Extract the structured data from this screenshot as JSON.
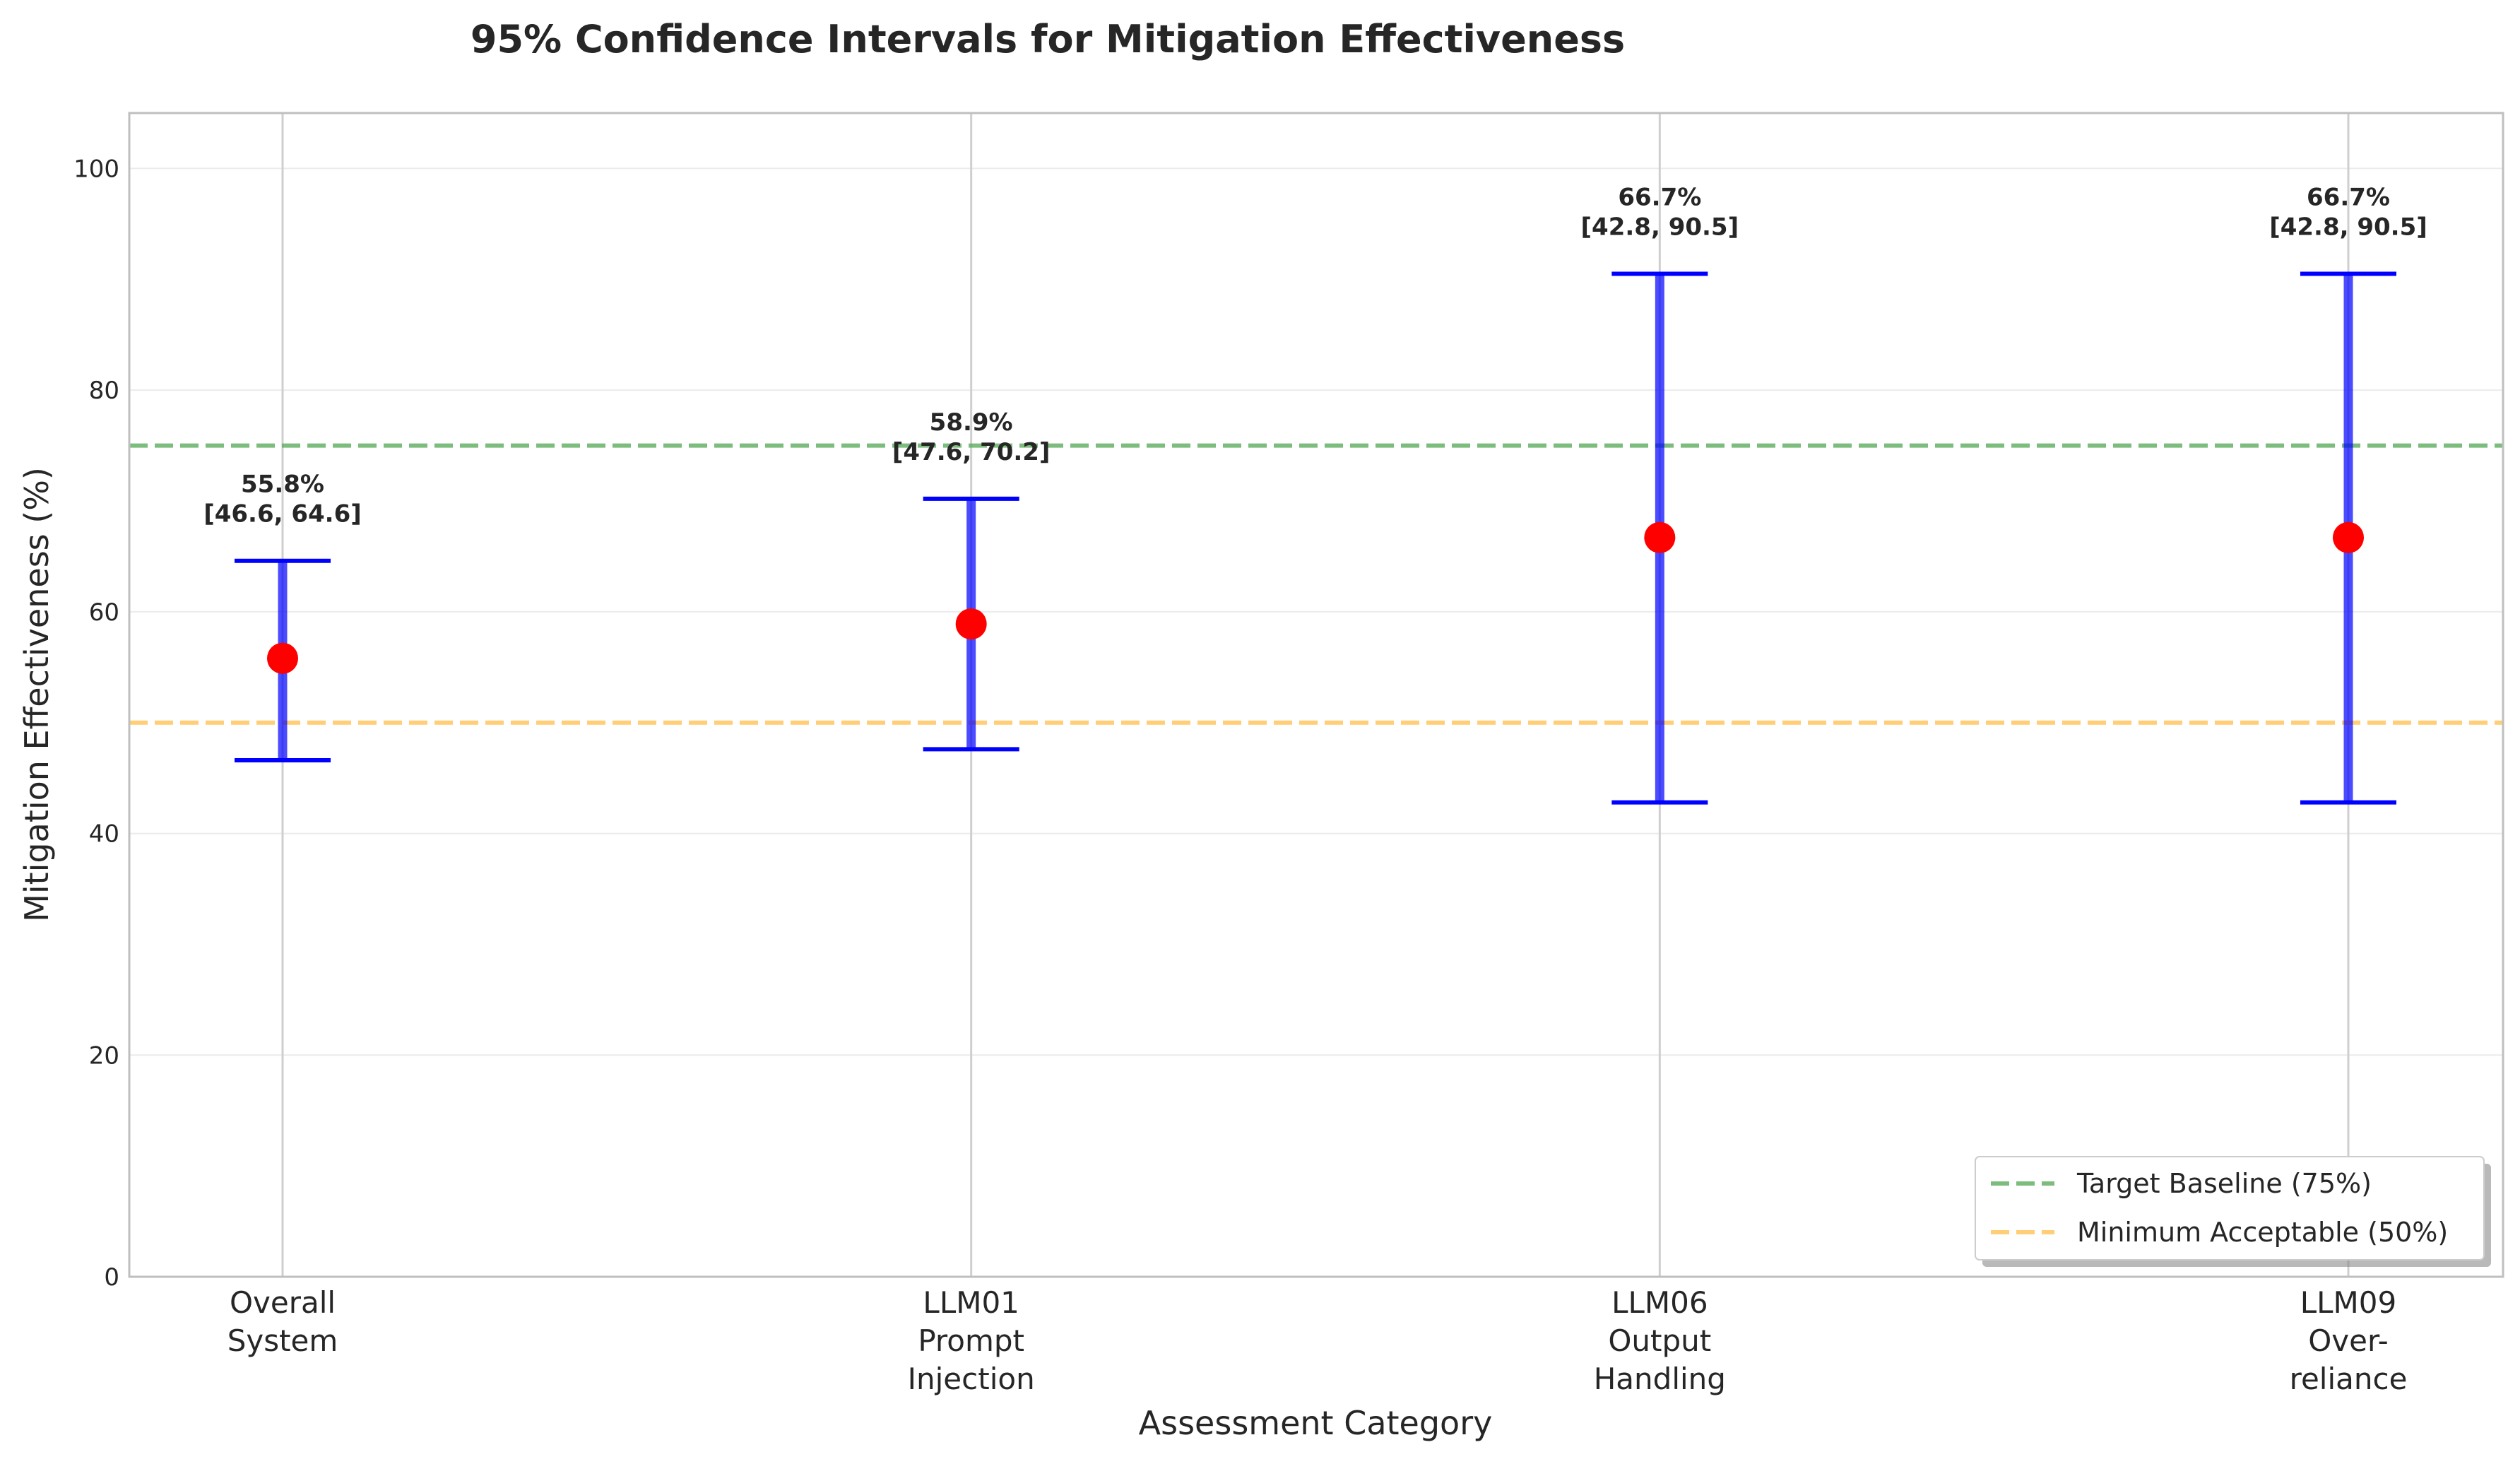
{
  "chart_data": {
    "type": "errorbar",
    "title": "95% Confidence Intervals for Mitigation Effectiveness",
    "xlabel": "Assessment Category",
    "ylabel": "Mitigation Effectiveness (%)",
    "ylim": [
      0,
      105
    ],
    "yticks": [
      0,
      20,
      40,
      60,
      80,
      100
    ],
    "grid": true,
    "legend_position": "lower-right",
    "categories": [
      [
        "Overall",
        "System"
      ],
      [
        "LLM01",
        "Prompt",
        "Injection"
      ],
      [
        "LLM06",
        "Output",
        "Handling"
      ],
      [
        "LLM09",
        "Over-",
        "reliance"
      ]
    ],
    "points": [
      {
        "value": 55.8,
        "lower": 46.6,
        "upper": 64.6,
        "label_value": "55.8%",
        "label_ci": "[46.6, 64.6]"
      },
      {
        "value": 58.9,
        "lower": 47.6,
        "upper": 70.2,
        "label_value": "58.9%",
        "label_ci": "[47.6, 70.2]"
      },
      {
        "value": 66.7,
        "lower": 42.8,
        "upper": 90.5,
        "label_value": "66.7%",
        "label_ci": "[42.8, 90.5]"
      },
      {
        "value": 66.7,
        "lower": 42.8,
        "upper": 90.5,
        "label_value": "66.7%",
        "label_ci": "[42.8, 90.5]"
      }
    ],
    "reference_lines": [
      {
        "name": "Target Baseline (75%)",
        "value": 75,
        "color": "#5cac5c"
      },
      {
        "name": "Minimum Acceptable (50%)",
        "value": 50,
        "color": "#ffc355"
      }
    ],
    "colors": {
      "errorbar": "#0000ff",
      "point": "#ff0000"
    }
  }
}
